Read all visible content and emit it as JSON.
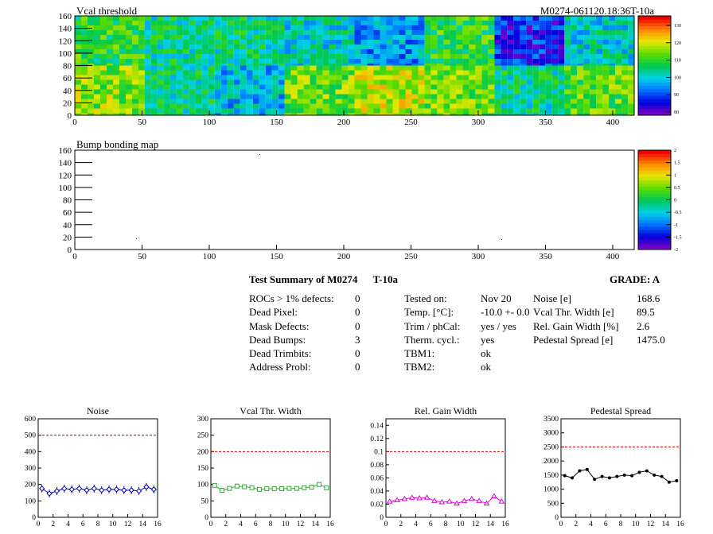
{
  "maps": {
    "vcal": {
      "title": "Vcal threshold",
      "id_label": "M0274-061120.18:36T-10a",
      "y_ticks": [
        "0",
        "20",
        "40",
        "60",
        "80",
        "100",
        "120",
        "140",
        "160"
      ],
      "x_ticks": [
        "0",
        "50",
        "100",
        "150",
        "200",
        "250",
        "300",
        "350",
        "400"
      ],
      "palette_ticks": [
        "80",
        "90",
        "100",
        "110",
        "120",
        "130"
      ]
    },
    "bump": {
      "title": "Bump bonding map",
      "y_ticks": [
        "0",
        "20",
        "40",
        "60",
        "80",
        "100",
        "120",
        "140",
        "160"
      ],
      "x_ticks": [
        "0",
        "50",
        "100",
        "150",
        "200",
        "250",
        "300",
        "350",
        "400"
      ],
      "palette_ticks": [
        "-2",
        "-1.5",
        "-1",
        "-0.5",
        "0",
        "0.5",
        "1",
        "1.5",
        "2"
      ]
    }
  },
  "summary": {
    "title": "Test Summary of M0274",
    "test": "T-10a",
    "grade": "GRADE:  A",
    "col1": [
      {
        "label": "ROCs > 1% defects:",
        "value": "0"
      },
      {
        "label": "Dead Pixel:",
        "value": "0"
      },
      {
        "label": "Mask Defects:",
        "value": "0"
      },
      {
        "label": "Dead Bumps:",
        "value": "3"
      },
      {
        "label": "Dead Trimbits:",
        "value": "0"
      },
      {
        "label": "Address Probl:",
        "value": "0"
      }
    ],
    "col2": [
      {
        "label": "Tested on:",
        "value": "Nov 20"
      },
      {
        "label": "Temp. [°C]:",
        "value": "-10.0 +- 0.0"
      },
      {
        "label": "Trim / phCal:",
        "value": "yes / yes"
      },
      {
        "label": "Therm. cycl.:",
        "value": "yes"
      },
      {
        "label": "TBM1:",
        "value": "ok"
      },
      {
        "label": "TBM2:",
        "value": "ok"
      }
    ],
    "col3": [
      {
        "label": "Noise [e]",
        "value": "168.6"
      },
      {
        "label": "Vcal Thr. Width [e]",
        "value": "89.5"
      },
      {
        "label": "Rel. Gain Width [%]",
        "value": "2.6"
      },
      {
        "label": "Pedestal Spread [e]",
        "value": "1475.0"
      }
    ]
  },
  "colors": {
    "noise": "#0000aa",
    "vcal": "#33aa33",
    "gain": "#dd00dd",
    "pedestal": "#000000",
    "limit": "#cc0000"
  },
  "chart_data": [
    {
      "type": "line",
      "title": "Noise",
      "xlim": [
        0,
        16
      ],
      "ylim": [
        0,
        600
      ],
      "limit": 500,
      "x_ticks": [
        "0",
        "2",
        "4",
        "6",
        "8",
        "10",
        "12",
        "14",
        "16"
      ],
      "y_ticks": [
        "0",
        "100",
        "200",
        "300",
        "400",
        "500",
        "600"
      ],
      "x": [
        0.5,
        1.5,
        2.5,
        3.5,
        4.5,
        5.5,
        6.5,
        7.5,
        8.5,
        9.5,
        10.5,
        11.5,
        12.5,
        13.5,
        14.5,
        15.5
      ],
      "values": [
        175,
        145,
        160,
        175,
        170,
        175,
        165,
        175,
        165,
        170,
        170,
        165,
        165,
        160,
        185,
        170
      ]
    },
    {
      "type": "line",
      "title": "Vcal Thr. Width",
      "xlim": [
        0,
        16
      ],
      "ylim": [
        0,
        300
      ],
      "limit": 200,
      "x_ticks": [
        "0",
        "2",
        "4",
        "6",
        "8",
        "10",
        "12",
        "14",
        "16"
      ],
      "y_ticks": [
        "0",
        "50",
        "100",
        "150",
        "200",
        "250",
        "300"
      ],
      "x": [
        0.5,
        1.5,
        2.5,
        3.5,
        4.5,
        5.5,
        6.5,
        7.5,
        8.5,
        9.5,
        10.5,
        11.5,
        12.5,
        13.5,
        14.5,
        15.5
      ],
      "values": [
        97,
        82,
        88,
        95,
        93,
        90,
        85,
        87,
        87,
        87,
        88,
        88,
        90,
        92,
        100,
        90
      ]
    },
    {
      "type": "line",
      "title": "Rel. Gain Width",
      "xlim": [
        0,
        16
      ],
      "ylim": [
        0,
        0.15
      ],
      "limit": 0.1,
      "x_ticks": [
        "0",
        "2",
        "4",
        "6",
        "8",
        "10",
        "12",
        "14",
        "16"
      ],
      "y_ticks": [
        "0",
        "0.02",
        "0.04",
        "0.06",
        "0.08",
        "0.1",
        "0.12",
        "0.14"
      ],
      "x": [
        0.5,
        1.5,
        2.5,
        3.5,
        4.5,
        5.5,
        6.5,
        7.5,
        8.5,
        9.5,
        10.5,
        11.5,
        12.5,
        13.5,
        14.5,
        15.5
      ],
      "values": [
        0.024,
        0.026,
        0.028,
        0.03,
        0.029,
        0.03,
        0.025,
        0.023,
        0.024,
        0.021,
        0.025,
        0.028,
        0.025,
        0.021,
        0.032,
        0.024
      ]
    },
    {
      "type": "line",
      "title": "Pedestal Spread",
      "xlim": [
        0,
        16
      ],
      "ylim": [
        0,
        3500
      ],
      "limit": 2500,
      "x_ticks": [
        "0",
        "2",
        "4",
        "6",
        "8",
        "10",
        "12",
        "14",
        "16"
      ],
      "y_ticks": [
        "0",
        "500",
        "1000",
        "1500",
        "2000",
        "2500",
        "3000",
        "3500"
      ],
      "x": [
        0.5,
        1.5,
        2.5,
        3.5,
        4.5,
        5.5,
        6.5,
        7.5,
        8.5,
        9.5,
        10.5,
        11.5,
        12.5,
        13.5,
        14.5,
        15.5
      ],
      "values": [
        1480,
        1400,
        1650,
        1700,
        1350,
        1450,
        1400,
        1450,
        1500,
        1480,
        1600,
        1650,
        1500,
        1450,
        1250,
        1300
      ]
    }
  ]
}
